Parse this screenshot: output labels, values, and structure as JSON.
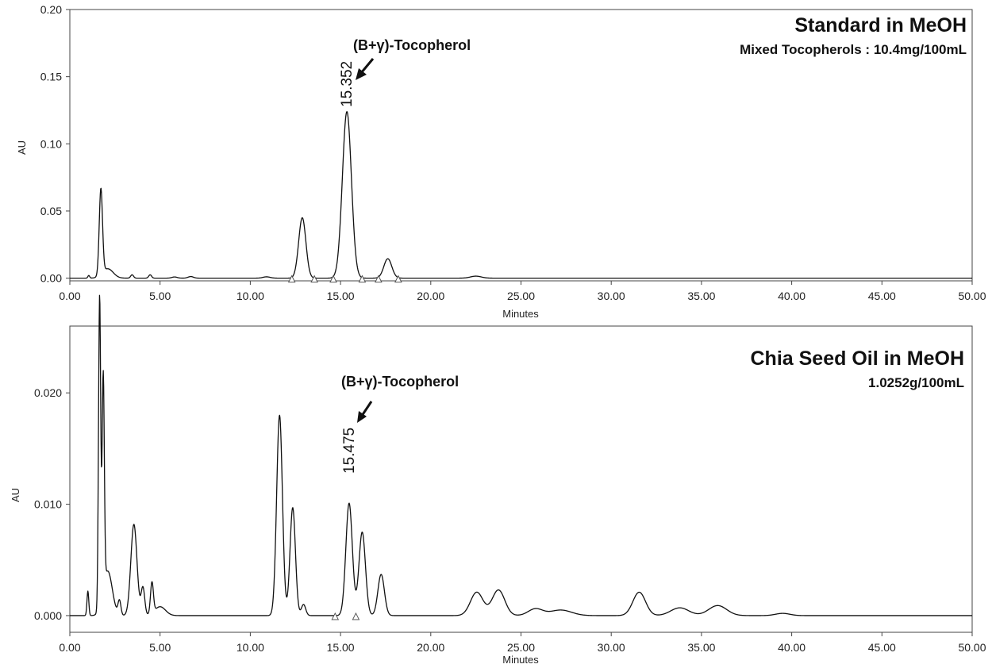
{
  "chart_data": [
    {
      "type": "line",
      "title": "Standard in MeOH",
      "subtitle": "Mixed Tocopherols : 10.4mg/100mL",
      "xlabel": "Minutes",
      "ylabel": "AU",
      "xlim": [
        0,
        50
      ],
      "ylim": [
        -0.002,
        0.2
      ],
      "x_ticks": [
        "0.00",
        "5.00",
        "10.00",
        "15.00",
        "20.00",
        "25.00",
        "30.00",
        "35.00",
        "40.00",
        "45.00",
        "50.00"
      ],
      "y_ticks": [
        {
          "value": 0.0,
          "label": "0.00"
        },
        {
          "value": 0.05,
          "label": "0.05"
        },
        {
          "value": 0.1,
          "label": "0.10"
        },
        {
          "value": 0.15,
          "label": "0.15"
        },
        {
          "value": 0.2,
          "label": "0.20"
        }
      ],
      "annotation": {
        "text": "(B+γ)-Tocopherol",
        "peak_label": "15.352",
        "x": 15.352
      },
      "peaks": [
        {
          "rt": 1.05,
          "height": 0.002,
          "width": 0.05
        },
        {
          "rt": 1.72,
          "height": 0.064,
          "width": 0.09
        },
        {
          "rt": 2.1,
          "height": 0.007,
          "width": 0.3
        },
        {
          "rt": 3.45,
          "height": 0.0025,
          "width": 0.08
        },
        {
          "rt": 4.45,
          "height": 0.0025,
          "width": 0.08
        },
        {
          "rt": 5.8,
          "height": 0.0009,
          "width": 0.15
        },
        {
          "rt": 6.7,
          "height": 0.0012,
          "width": 0.15
        },
        {
          "rt": 10.9,
          "height": 0.001,
          "width": 0.2
        },
        {
          "rt": 12.88,
          "height": 0.045,
          "width": 0.2
        },
        {
          "rt": 15.352,
          "height": 0.124,
          "width": 0.25
        },
        {
          "rt": 17.62,
          "height": 0.0145,
          "width": 0.22
        },
        {
          "rt": 22.5,
          "height": 0.0015,
          "width": 0.3
        }
      ],
      "markers": [
        12.3,
        13.55,
        14.6,
        16.2,
        17.1,
        18.2
      ]
    },
    {
      "type": "line",
      "title": "Chia Seed Oil in MeOH",
      "subtitle": "1.0252g/100mL",
      "xlabel": "Minutes",
      "ylabel": "AU",
      "xlim": [
        0,
        50
      ],
      "ylim": [
        -0.0015,
        0.026
      ],
      "x_ticks": [
        "0.00",
        "5.00",
        "10.00",
        "15.00",
        "20.00",
        "25.00",
        "30.00",
        "35.00",
        "40.00",
        "45.00",
        "50.00"
      ],
      "y_ticks": [
        {
          "value": 0.0,
          "label": "0.000"
        },
        {
          "value": 0.01,
          "label": "0.010"
        },
        {
          "value": 0.02,
          "label": "0.020"
        }
      ],
      "annotation": {
        "text": "(B+γ)-Tocopherol",
        "peak_label": "15.475",
        "x": 15.475
      },
      "peaks": [
        {
          "rt": 1.0,
          "height": 0.0022,
          "width": 0.05
        },
        {
          "rt": 1.65,
          "height": 0.028,
          "width": 0.06
        },
        {
          "rt": 1.85,
          "height": 0.0195,
          "width": 0.06
        },
        {
          "rt": 2.1,
          "height": 0.004,
          "width": 0.25
        },
        {
          "rt": 2.75,
          "height": 0.0013,
          "width": 0.08
        },
        {
          "rt": 3.55,
          "height": 0.0082,
          "width": 0.17
        },
        {
          "rt": 4.05,
          "height": 0.0025,
          "width": 0.1
        },
        {
          "rt": 4.55,
          "height": 0.0028,
          "width": 0.08
        },
        {
          "rt": 5.0,
          "height": 0.0008,
          "width": 0.3
        },
        {
          "rt": 11.62,
          "height": 0.018,
          "width": 0.16
        },
        {
          "rt": 12.35,
          "height": 0.0097,
          "width": 0.15
        },
        {
          "rt": 12.95,
          "height": 0.001,
          "width": 0.12
        },
        {
          "rt": 15.475,
          "height": 0.0101,
          "width": 0.18
        },
        {
          "rt": 16.2,
          "height": 0.0075,
          "width": 0.18
        },
        {
          "rt": 17.25,
          "height": 0.0037,
          "width": 0.18
        },
        {
          "rt": 22.55,
          "height": 0.0021,
          "width": 0.35
        },
        {
          "rt": 23.75,
          "height": 0.0023,
          "width": 0.35
        },
        {
          "rt": 25.8,
          "height": 0.0006,
          "width": 0.4
        },
        {
          "rt": 27.2,
          "height": 0.0005,
          "width": 0.6
        },
        {
          "rt": 31.55,
          "height": 0.0021,
          "width": 0.35
        },
        {
          "rt": 33.8,
          "height": 0.0007,
          "width": 0.5
        },
        {
          "rt": 35.9,
          "height": 0.0009,
          "width": 0.5
        },
        {
          "rt": 39.5,
          "height": 0.0002,
          "width": 0.4
        }
      ],
      "markers": [
        14.7,
        15.85
      ]
    }
  ]
}
